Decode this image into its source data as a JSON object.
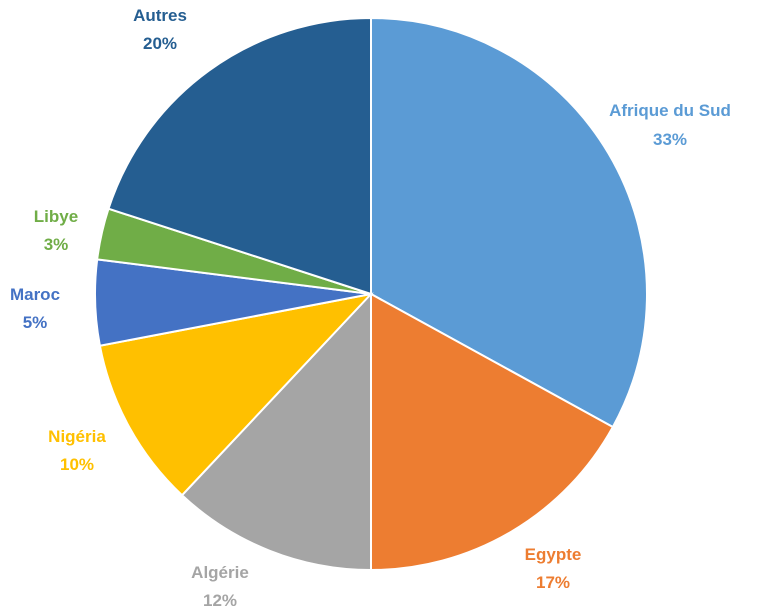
{
  "chart_data": {
    "type": "pie",
    "title": "",
    "slices": [
      {
        "label": "Afrique du Sud",
        "value": 33,
        "value_label": "33%",
        "color": "#5B9BD5"
      },
      {
        "label": "Egypte",
        "value": 17,
        "value_label": "17%",
        "color": "#ED7D31"
      },
      {
        "label": "Algérie",
        "value": 12,
        "value_label": "12%",
        "color": "#A5A5A5"
      },
      {
        "label": "Nigéria",
        "value": 10,
        "value_label": "10%",
        "color": "#FFC000"
      },
      {
        "label": "Maroc",
        "value": 5,
        "value_label": "5%",
        "color": "#4472C4"
      },
      {
        "label": "Libye",
        "value": 3,
        "value_label": "3%",
        "color": "#70AD47"
      },
      {
        "label": "Autres",
        "value": 20,
        "value_label": "20%",
        "color": "#255E91"
      }
    ],
    "start_angle": "12 o'clock",
    "direction": "clockwise",
    "legend": "none",
    "labels_position": "outside"
  }
}
